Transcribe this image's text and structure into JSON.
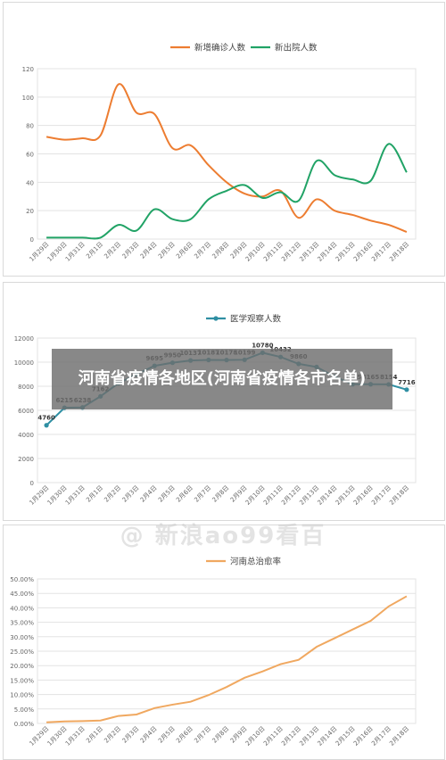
{
  "overlay_title": "河南省疫情各地区(河南省疫情各市名单)",
  "watermark": "@ 新浪ao99看百",
  "chart_data": [
    {
      "type": "line",
      "x": [
        "1月29日",
        "1月30日",
        "1月31日",
        "2月1日",
        "2月2日",
        "2月3日",
        "2月4日",
        "2月5日",
        "2月6日",
        "2月7日",
        "2月8日",
        "2月9日",
        "2月10日",
        "2月11日",
        "2月12日",
        "2月13日",
        "2月14日",
        "2月15日",
        "2月16日",
        "2月17日",
        "2月18日"
      ],
      "series": [
        {
          "name": "新增确诊人数",
          "color": "#ed7d31",
          "values": [
            72,
            70,
            71,
            73,
            109,
            89,
            88,
            64,
            66,
            52,
            40,
            32,
            30,
            34,
            15,
            28,
            20,
            17,
            13,
            10,
            5
          ]
        },
        {
          "name": "新出院人数",
          "color": "#21a366",
          "values": [
            1,
            1,
            1,
            1,
            10,
            6,
            21,
            14,
            14,
            28,
            34,
            38,
            29,
            33,
            27,
            55,
            45,
            42,
            41,
            67,
            47
          ]
        }
      ],
      "ylim": [
        0,
        120
      ],
      "yticks": [
        "0",
        "20",
        "40",
        "60",
        "80",
        "100",
        "120"
      ],
      "grid": true,
      "legend_position": "top"
    },
    {
      "type": "line",
      "x": [
        "1月29日",
        "1月30日",
        "1月31日",
        "2月1日",
        "2月2日",
        "2月3日",
        "2月4日",
        "2月5日",
        "2月6日",
        "2月7日",
        "2月8日",
        "2月9日",
        "2月10日",
        "2月11日",
        "2月12日",
        "2月13日",
        "2月14日",
        "2月15日",
        "2月16日",
        "2月17日",
        "2月18日"
      ],
      "series": [
        {
          "name": "医学观察人数",
          "color": "#2f8fa3",
          "values": [
            4760,
            6215,
            6238,
            7162,
            8250,
            9000,
            9695,
            9950,
            10137,
            10187,
            10178,
            10199,
            10780,
            10432,
            9860,
            9600,
            8800,
            8165,
            8165,
            8154,
            7716
          ]
        }
      ],
      "data_labels": [
        "4760",
        "6215",
        "6238",
        "7162",
        "",
        "",
        "9695",
        "9950",
        "10137",
        "10187",
        "10178",
        "10199",
        "10780",
        "10432",
        "9860",
        "",
        "",
        "8165",
        "8165",
        "8154",
        "7716"
      ],
      "ylim": [
        0,
        12000
      ],
      "yticks": [
        "0",
        "2000",
        "4000",
        "6000",
        "8000",
        "10000",
        "12000"
      ],
      "grid": true,
      "legend_position": "top"
    },
    {
      "type": "line",
      "x": [
        "1月29日",
        "1月30日",
        "1月31日",
        "2月1日",
        "2月2日",
        "2月3日",
        "2月4日",
        "2月5日",
        "2月6日",
        "2月7日",
        "2月8日",
        "2月9日",
        "2月10日",
        "2月11日",
        "2月12日",
        "2月13日",
        "2月14日",
        "2月15日",
        "2月16日",
        "2月17日",
        "2月18日"
      ],
      "series": [
        {
          "name": "河南总治愈率",
          "color": "#f0a860",
          "values": [
            0.4,
            0.7,
            0.8,
            1.0,
            2.6,
            3.1,
            5.3,
            6.5,
            7.5,
            9.8,
            12.6,
            15.8,
            18.0,
            20.5,
            22.0,
            26.5,
            29.5,
            32.5,
            35.5,
            40.5,
            44.0
          ]
        }
      ],
      "ylim": [
        0,
        50
      ],
      "yticks": [
        "0.00%",
        "5.00%",
        "10.00%",
        "15.00%",
        "20.00%",
        "25.00%",
        "30.00%",
        "35.00%",
        "40.00%",
        "45.00%",
        "50.00%"
      ],
      "grid": true,
      "legend_position": "top"
    }
  ]
}
